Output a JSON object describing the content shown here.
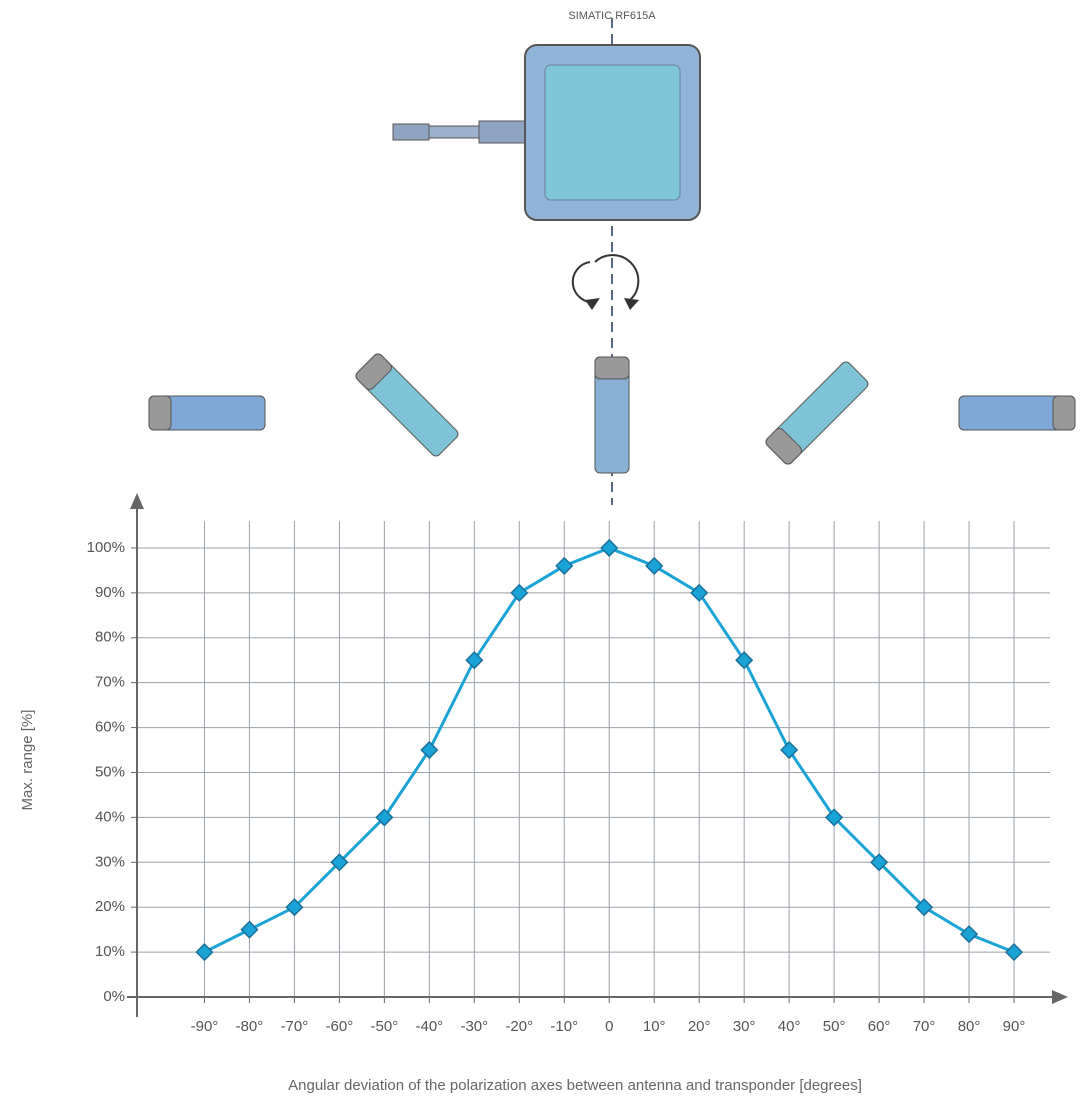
{
  "chart_data": {
    "type": "line",
    "annotations": [
      "SIMATIC RF615A"
    ],
    "x_label": "Angular deviation of the polarization axes between antenna and transponder [degrees]",
    "y_label": "Max. range [%]",
    "x": [
      -90,
      -80,
      -70,
      -60,
      -50,
      -40,
      -30,
      -20,
      -10,
      0,
      10,
      20,
      30,
      40,
      50,
      60,
      70,
      80,
      90
    ],
    "series": [
      {
        "color": "#1aa3d6",
        "values": [
          10,
          15,
          20,
          30,
          40,
          55,
          75,
          90,
          96,
          100,
          96,
          90,
          75,
          55,
          40,
          30,
          20,
          14,
          10
        ]
      }
    ],
    "xlim": [
      -105,
      98
    ],
    "ylim": [
      0,
      106
    ],
    "xticks": [
      {
        "value": -90,
        "label": "-90°"
      },
      {
        "value": -80,
        "label": "-80°"
      },
      {
        "value": -70,
        "label": "-70°"
      },
      {
        "value": -60,
        "label": "-60°"
      },
      {
        "value": -50,
        "label": "-50°"
      },
      {
        "value": -40,
        "label": "-40°"
      },
      {
        "value": -30,
        "label": "-30°"
      },
      {
        "value": -20,
        "label": "-20°"
      },
      {
        "value": -10,
        "label": "-10°"
      },
      0,
      {
        "value": 10,
        "label": "10°"
      },
      {
        "value": 20,
        "label": "20°"
      },
      {
        "value": 30,
        "label": "30°"
      },
      {
        "value": 40,
        "label": "40°"
      },
      {
        "value": 50,
        "label": "50°"
      },
      {
        "value": 60,
        "label": "60°"
      },
      {
        "value": 70,
        "label": "70°"
      },
      {
        "value": 80,
        "label": "80°"
      },
      {
        "value": 90,
        "label": "90°"
      }
    ],
    "yticks": [
      {
        "value": 0,
        "label": "0%"
      },
      {
        "value": 10,
        "label": "10%"
      },
      {
        "value": 20,
        "label": "20%"
      },
      {
        "value": 30,
        "label": "30%"
      },
      {
        "value": 40,
        "label": "40%"
      },
      {
        "value": 50,
        "label": "50%"
      },
      {
        "value": 60,
        "label": "60%"
      },
      {
        "value": 70,
        "label": "70%"
      },
      {
        "value": 80,
        "label": "80%"
      },
      {
        "value": 90,
        "label": "90%"
      },
      {
        "value": 100,
        "label": "100%"
      }
    ],
    "grid": true
  }
}
